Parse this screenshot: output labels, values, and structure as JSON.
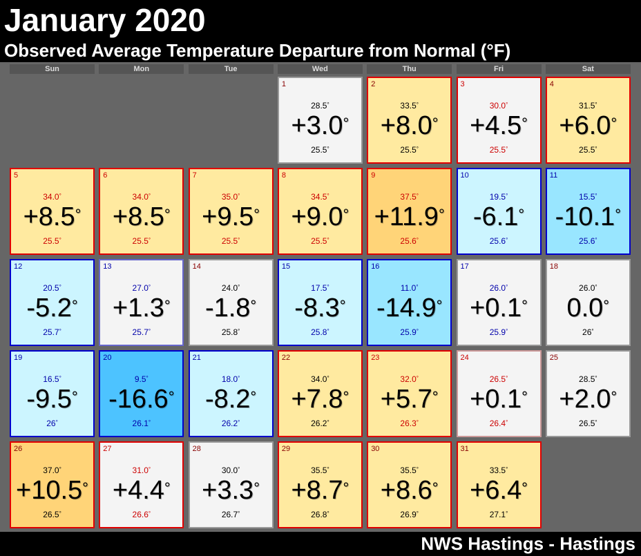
{
  "header": {
    "title": "January 2020",
    "subtitle": "Observed Average Temperature Departure from Normal (°F)"
  },
  "weekdays": [
    "Sun",
    "Mon",
    "Tue",
    "Wed",
    "Thu",
    "Fri",
    "Sat"
  ],
  "degree": "°",
  "days": [
    {
      "day": "1",
      "observed": "28.5",
      "departure": "+3.0",
      "normal": "25.5",
      "fill": "#f4f4f4",
      "border": "#999999",
      "ink": "#000000"
    },
    {
      "day": "2",
      "observed": "33.5",
      "departure": "+8.0",
      "normal": "25.5",
      "fill": "#ffeaa0",
      "border": "#e00000",
      "ink": "#000000"
    },
    {
      "day": "3",
      "observed": "30.0",
      "departure": "+4.5",
      "normal": "25.5",
      "fill": "#f4f4f4",
      "border": "#e00000",
      "ink": "#cc0000"
    },
    {
      "day": "4",
      "observed": "31.5",
      "departure": "+6.0",
      "normal": "25.5",
      "fill": "#ffeaa0",
      "border": "#e00000",
      "ink": "#000000"
    },
    {
      "day": "5",
      "observed": "34.0",
      "departure": "+8.5",
      "normal": "25.5",
      "fill": "#ffeaa0",
      "border": "#e00000",
      "ink": "#cc0000"
    },
    {
      "day": "6",
      "observed": "34.0",
      "departure": "+8.5",
      "normal": "25.5",
      "fill": "#ffeaa0",
      "border": "#e00000",
      "ink": "#cc0000"
    },
    {
      "day": "7",
      "observed": "35.0",
      "departure": "+9.5",
      "normal": "25.5",
      "fill": "#ffeaa0",
      "border": "#e00000",
      "ink": "#cc0000"
    },
    {
      "day": "8",
      "observed": "34.5",
      "departure": "+9.0",
      "normal": "25.5",
      "fill": "#ffeaa0",
      "border": "#e00000",
      "ink": "#cc0000"
    },
    {
      "day": "9",
      "observed": "37.5",
      "departure": "+11.9",
      "normal": "25.6",
      "fill": "#ffd478",
      "border": "#e00000",
      "ink": "#cc0000"
    },
    {
      "day": "10",
      "observed": "19.5",
      "departure": "-6.1",
      "normal": "25.6",
      "fill": "#ccf5ff",
      "border": "#0000cc",
      "ink": "#0000aa"
    },
    {
      "day": "11",
      "observed": "15.5",
      "departure": "-10.1",
      "normal": "25.6",
      "fill": "#99e6ff",
      "border": "#0000cc",
      "ink": "#0000aa"
    },
    {
      "day": "12",
      "observed": "20.5",
      "departure": "-5.2",
      "normal": "25.7",
      "fill": "#ccf5ff",
      "border": "#0000cc",
      "ink": "#0000aa"
    },
    {
      "day": "13",
      "observed": "27.0",
      "departure": "+1.3",
      "normal": "25.7",
      "fill": "#f4f4f4",
      "border": "#6666cc",
      "ink": "#0000aa"
    },
    {
      "day": "14",
      "observed": "24.0",
      "departure": "-1.8",
      "normal": "25.8",
      "fill": "#f4f4f4",
      "border": "#999999",
      "ink": "#000000"
    },
    {
      "day": "15",
      "observed": "17.5",
      "departure": "-8.3",
      "normal": "25.8",
      "fill": "#ccf5ff",
      "border": "#0000cc",
      "ink": "#0000aa"
    },
    {
      "day": "16",
      "observed": "11.0",
      "departure": "-14.9",
      "normal": "25.9",
      "fill": "#99e6ff",
      "border": "#0000cc",
      "ink": "#0000aa"
    },
    {
      "day": "17",
      "observed": "26.0",
      "departure": "+0.1",
      "normal": "25.9",
      "fill": "#f4f4f4",
      "border": "#999999",
      "ink": "#0000aa"
    },
    {
      "day": "18",
      "observed": "26.0",
      "departure": "0.0",
      "normal": "26",
      "fill": "#f4f4f4",
      "border": "#999999",
      "ink": "#000000"
    },
    {
      "day": "19",
      "observed": "16.5",
      "departure": "-9.5",
      "normal": "26",
      "fill": "#ccf5ff",
      "border": "#0000cc",
      "ink": "#0000aa"
    },
    {
      "day": "20",
      "observed": "9.5",
      "departure": "-16.6",
      "normal": "26.1",
      "fill": "#4dc3ff",
      "border": "#0000cc",
      "ink": "#0000aa"
    },
    {
      "day": "21",
      "observed": "18.0",
      "departure": "-8.2",
      "normal": "26.2",
      "fill": "#ccf5ff",
      "border": "#0000cc",
      "ink": "#0000aa"
    },
    {
      "day": "22",
      "observed": "34.0",
      "departure": "+7.8",
      "normal": "26.2",
      "fill": "#ffeaa0",
      "border": "#e00000",
      "ink": "#000000"
    },
    {
      "day": "23",
      "observed": "32.0",
      "departure": "+5.7",
      "normal": "26.3",
      "fill": "#ffeaa0",
      "border": "#e00000",
      "ink": "#cc0000"
    },
    {
      "day": "24",
      "observed": "26.5",
      "departure": "+0.1",
      "normal": "26.4",
      "fill": "#f4f4f4",
      "border": "#cc9999",
      "ink": "#cc0000"
    },
    {
      "day": "25",
      "observed": "28.5",
      "departure": "+2.0",
      "normal": "26.5",
      "fill": "#f4f4f4",
      "border": "#999999",
      "ink": "#000000"
    },
    {
      "day": "26",
      "observed": "37.0",
      "departure": "+10.5",
      "normal": "26.5",
      "fill": "#ffd478",
      "border": "#e00000",
      "ink": "#000000"
    },
    {
      "day": "27",
      "observed": "31.0",
      "departure": "+4.4",
      "normal": "26.6",
      "fill": "#f4f4f4",
      "border": "#e00000",
      "ink": "#cc0000"
    },
    {
      "day": "28",
      "observed": "30.0",
      "departure": "+3.3",
      "normal": "26.7",
      "fill": "#f4f4f4",
      "border": "#999999",
      "ink": "#000000"
    },
    {
      "day": "29",
      "observed": "35.5",
      "departure": "+8.7",
      "normal": "26.8",
      "fill": "#ffeaa0",
      "border": "#e00000",
      "ink": "#000000"
    },
    {
      "day": "30",
      "observed": "35.5",
      "departure": "+8.6",
      "normal": "26.9",
      "fill": "#ffeaa0",
      "border": "#e00000",
      "ink": "#000000"
    },
    {
      "day": "31",
      "observed": "33.5",
      "departure": "+6.4",
      "normal": "27.1",
      "fill": "#ffeaa0",
      "border": "#e00000",
      "ink": "#000000"
    }
  ],
  "footer": "NWS Hastings - Hastings"
}
